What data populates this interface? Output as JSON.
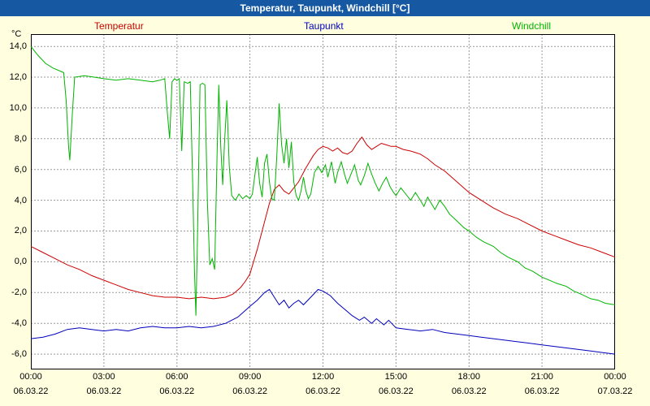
{
  "title": "Temperatur, Taupunkt, Windchill [°C]",
  "legend": {
    "temperatur": "Temperatur",
    "taupunkt": "Taupunkt",
    "windchill": "Windchill"
  },
  "colors": {
    "titlebar_bg": "#1659a2",
    "titlebar_text": "#ffffff",
    "page_bg": "#ffffe0",
    "plot_bg": "#ffffff",
    "grid": "#999999",
    "temperatur": "#cc0000",
    "taupunkt": "#0000bb",
    "windchill": "#00b400"
  },
  "chart_data": {
    "type": "line",
    "title": "Temperatur, Taupunkt, Windchill [°C]",
    "xlabel": "",
    "ylabel": "°C",
    "grid": true,
    "legend_position": "top",
    "xlim": [
      0,
      24
    ],
    "ylim": [
      -7,
      14.8
    ],
    "yticks": {
      "values": [
        14,
        12,
        10,
        8,
        6,
        4,
        2,
        0,
        -2,
        -4,
        -6
      ],
      "labels": [
        "14,0",
        "12,0",
        "10,0",
        "8,0",
        "6,0",
        "4,0",
        "2,0",
        "0,0",
        "-2,0",
        "-4,0",
        "-6,0"
      ]
    },
    "xticks": {
      "hours": [
        0,
        3,
        6,
        9,
        12,
        15,
        18,
        21,
        24
      ],
      "time_labels": [
        "00:00",
        "03:00",
        "06:00",
        "09:00",
        "12:00",
        "15:00",
        "18:00",
        "21:00",
        "00:00"
      ],
      "date_labels": [
        "06.03.22",
        "06.03.22",
        "06.03.22",
        "06.03.22",
        "06.03.22",
        "06.03.22",
        "06.03.22",
        "06.03.22",
        "07.03.22"
      ]
    },
    "series": [
      {
        "name": "Temperatur",
        "color": "#cc0000",
        "points": [
          [
            0,
            1.0
          ],
          [
            0.5,
            0.6
          ],
          [
            1,
            0.2
          ],
          [
            1.5,
            -0.2
          ],
          [
            2,
            -0.5
          ],
          [
            2.5,
            -0.9
          ],
          [
            3,
            -1.2
          ],
          [
            3.5,
            -1.5
          ],
          [
            4,
            -1.8
          ],
          [
            4.5,
            -2.0
          ],
          [
            5,
            -2.2
          ],
          [
            5.5,
            -2.3
          ],
          [
            6,
            -2.3
          ],
          [
            6.5,
            -2.4
          ],
          [
            7,
            -2.3
          ],
          [
            7.5,
            -2.4
          ],
          [
            8,
            -2.3
          ],
          [
            8.3,
            -2.1
          ],
          [
            8.6,
            -1.7
          ],
          [
            8.8,
            -1.3
          ],
          [
            9,
            -0.8
          ],
          [
            9.3,
            0.8
          ],
          [
            9.6,
            2.6
          ],
          [
            9.8,
            3.8
          ],
          [
            10,
            4.7
          ],
          [
            10.2,
            5.0
          ],
          [
            10.4,
            4.6
          ],
          [
            10.6,
            4.4
          ],
          [
            10.8,
            4.8
          ],
          [
            11,
            5.2
          ],
          [
            11.3,
            6.1
          ],
          [
            11.6,
            6.9
          ],
          [
            11.8,
            7.3
          ],
          [
            12,
            7.5
          ],
          [
            12.2,
            7.4
          ],
          [
            12.4,
            7.2
          ],
          [
            12.6,
            7.4
          ],
          [
            12.8,
            7.1
          ],
          [
            13,
            7.0
          ],
          [
            13.2,
            7.2
          ],
          [
            13.4,
            7.7
          ],
          [
            13.6,
            8.1
          ],
          [
            13.8,
            7.6
          ],
          [
            14,
            7.3
          ],
          [
            14.2,
            7.5
          ],
          [
            14.4,
            7.7
          ],
          [
            14.6,
            7.6
          ],
          [
            14.8,
            7.5
          ],
          [
            15,
            7.5
          ],
          [
            15.3,
            7.3
          ],
          [
            15.6,
            7.2
          ],
          [
            16,
            7.0
          ],
          [
            16.3,
            6.7
          ],
          [
            16.6,
            6.3
          ],
          [
            17,
            5.9
          ],
          [
            17.5,
            5.2
          ],
          [
            18,
            4.5
          ],
          [
            18.5,
            4.0
          ],
          [
            19,
            3.5
          ],
          [
            19.5,
            3.1
          ],
          [
            20,
            2.8
          ],
          [
            20.5,
            2.4
          ],
          [
            21,
            2.0
          ],
          [
            21.5,
            1.7
          ],
          [
            22,
            1.4
          ],
          [
            22.5,
            1.1
          ],
          [
            23,
            0.9
          ],
          [
            23.5,
            0.6
          ],
          [
            24,
            0.3
          ]
        ]
      },
      {
        "name": "Taupunkt",
        "color": "#0000bb",
        "points": [
          [
            0,
            -5.0
          ],
          [
            0.5,
            -4.9
          ],
          [
            1,
            -4.7
          ],
          [
            1.5,
            -4.4
          ],
          [
            2,
            -4.3
          ],
          [
            2.5,
            -4.4
          ],
          [
            3,
            -4.5
          ],
          [
            3.5,
            -4.4
          ],
          [
            4,
            -4.5
          ],
          [
            4.5,
            -4.3
          ],
          [
            5,
            -4.2
          ],
          [
            5.5,
            -4.3
          ],
          [
            6,
            -4.3
          ],
          [
            6.5,
            -4.2
          ],
          [
            7,
            -4.3
          ],
          [
            7.5,
            -4.2
          ],
          [
            8,
            -4.0
          ],
          [
            8.5,
            -3.6
          ],
          [
            9,
            -2.9
          ],
          [
            9.3,
            -2.5
          ],
          [
            9.6,
            -2.0
          ],
          [
            9.8,
            -1.8
          ],
          [
            10,
            -2.3
          ],
          [
            10.2,
            -2.8
          ],
          [
            10.4,
            -2.5
          ],
          [
            10.6,
            -3.0
          ],
          [
            10.8,
            -2.7
          ],
          [
            11,
            -2.5
          ],
          [
            11.2,
            -2.8
          ],
          [
            11.5,
            -2.3
          ],
          [
            11.8,
            -1.8
          ],
          [
            12,
            -1.9
          ],
          [
            12.3,
            -2.2
          ],
          [
            12.6,
            -2.7
          ],
          [
            12.9,
            -3.1
          ],
          [
            13.2,
            -3.5
          ],
          [
            13.5,
            -3.8
          ],
          [
            13.7,
            -3.6
          ],
          [
            14,
            -4.0
          ],
          [
            14.2,
            -3.7
          ],
          [
            14.5,
            -4.1
          ],
          [
            14.7,
            -3.8
          ],
          [
            15,
            -4.3
          ],
          [
            15.5,
            -4.4
          ],
          [
            16,
            -4.5
          ],
          [
            16.5,
            -4.4
          ],
          [
            17,
            -4.6
          ],
          [
            17.5,
            -4.7
          ],
          [
            18,
            -4.8
          ],
          [
            18.5,
            -4.9
          ],
          [
            19,
            -5.0
          ],
          [
            19.5,
            -5.1
          ],
          [
            20,
            -5.2
          ],
          [
            20.5,
            -5.3
          ],
          [
            21,
            -5.4
          ],
          [
            21.5,
            -5.5
          ],
          [
            22,
            -5.6
          ],
          [
            22.5,
            -5.7
          ],
          [
            23,
            -5.8
          ],
          [
            23.5,
            -5.9
          ],
          [
            24,
            -6.0
          ]
        ]
      },
      {
        "name": "Windchill",
        "color": "#00b400",
        "points": [
          [
            0,
            14.0
          ],
          [
            0.3,
            13.4
          ],
          [
            0.6,
            12.9
          ],
          [
            0.9,
            12.6
          ],
          [
            1.2,
            12.4
          ],
          [
            1.35,
            12.3
          ],
          [
            1.45,
            10.5
          ],
          [
            1.55,
            7.5
          ],
          [
            1.6,
            6.6
          ],
          [
            1.7,
            9.5
          ],
          [
            1.8,
            12.0
          ],
          [
            2.2,
            12.1
          ],
          [
            2.6,
            12.0
          ],
          [
            3,
            11.9
          ],
          [
            3.5,
            11.8
          ],
          [
            4,
            11.9
          ],
          [
            4.5,
            11.8
          ],
          [
            5,
            11.7
          ],
          [
            5.3,
            11.8
          ],
          [
            5.5,
            11.9
          ],
          [
            5.6,
            9.8
          ],
          [
            5.7,
            8.0
          ],
          [
            5.8,
            11.7
          ],
          [
            5.9,
            11.9
          ],
          [
            6,
            11.8
          ],
          [
            6.1,
            11.9
          ],
          [
            6.2,
            7.2
          ],
          [
            6.3,
            11.7
          ],
          [
            6.45,
            11.6
          ],
          [
            6.55,
            11.7
          ],
          [
            6.65,
            5.0
          ],
          [
            6.72,
            -0.5
          ],
          [
            6.78,
            -3.5
          ],
          [
            6.85,
            2.0
          ],
          [
            6.95,
            11.5
          ],
          [
            7.05,
            11.6
          ],
          [
            7.15,
            11.5
          ],
          [
            7.25,
            4.0
          ],
          [
            7.35,
            -0.2
          ],
          [
            7.45,
            0.2
          ],
          [
            7.55,
            -0.5
          ],
          [
            7.65,
            7.0
          ],
          [
            7.72,
            11.5
          ],
          [
            7.8,
            7.5
          ],
          [
            7.88,
            5.0
          ],
          [
            7.95,
            7.6
          ],
          [
            8.05,
            10.5
          ],
          [
            8.15,
            6.2
          ],
          [
            8.25,
            4.3
          ],
          [
            8.4,
            4.0
          ],
          [
            8.55,
            4.4
          ],
          [
            8.7,
            4.1
          ],
          [
            8.85,
            4.3
          ],
          [
            9,
            4.1
          ],
          [
            9.1,
            4.4
          ],
          [
            9.2,
            5.6
          ],
          [
            9.3,
            6.8
          ],
          [
            9.4,
            5.1
          ],
          [
            9.5,
            4.2
          ],
          [
            9.6,
            6.4
          ],
          [
            9.7,
            7.0
          ],
          [
            9.8,
            5.2
          ],
          [
            9.9,
            4.1
          ],
          [
            10,
            4.0
          ],
          [
            10.1,
            6.8
          ],
          [
            10.2,
            10.3
          ],
          [
            10.3,
            7.6
          ],
          [
            10.4,
            6.4
          ],
          [
            10.5,
            8.0
          ],
          [
            10.6,
            6.1
          ],
          [
            10.7,
            7.8
          ],
          [
            10.8,
            5.2
          ],
          [
            10.9,
            4.3
          ],
          [
            11,
            4.0
          ],
          [
            11.1,
            4.6
          ],
          [
            11.2,
            5.5
          ],
          [
            11.3,
            4.6
          ],
          [
            11.4,
            4.1
          ],
          [
            11.5,
            4.4
          ],
          [
            11.65,
            5.8
          ],
          [
            11.8,
            6.2
          ],
          [
            11.95,
            5.8
          ],
          [
            12.1,
            6.3
          ],
          [
            12.2,
            5.5
          ],
          [
            12.35,
            6.5
          ],
          [
            12.5,
            5.1
          ],
          [
            12.6,
            5.8
          ],
          [
            12.75,
            6.5
          ],
          [
            12.9,
            5.6
          ],
          [
            13,
            5.1
          ],
          [
            13.15,
            5.7
          ],
          [
            13.3,
            6.3
          ],
          [
            13.45,
            5.3
          ],
          [
            13.55,
            5.0
          ],
          [
            13.7,
            5.6
          ],
          [
            13.85,
            6.4
          ],
          [
            14,
            5.7
          ],
          [
            14.15,
            5.1
          ],
          [
            14.3,
            4.6
          ],
          [
            14.45,
            5.1
          ],
          [
            14.6,
            5.5
          ],
          [
            14.75,
            4.9
          ],
          [
            14.9,
            4.5
          ],
          [
            15,
            4.3
          ],
          [
            15.2,
            4.8
          ],
          [
            15.4,
            4.4
          ],
          [
            15.6,
            4.0
          ],
          [
            15.8,
            4.5
          ],
          [
            16,
            4.0
          ],
          [
            16.15,
            3.6
          ],
          [
            16.3,
            4.2
          ],
          [
            16.45,
            3.8
          ],
          [
            16.6,
            3.4
          ],
          [
            16.8,
            4.0
          ],
          [
            17,
            3.6
          ],
          [
            17.2,
            3.1
          ],
          [
            17.4,
            2.8
          ],
          [
            17.6,
            2.5
          ],
          [
            17.8,
            2.2
          ],
          [
            18,
            2.0
          ],
          [
            18.3,
            1.6
          ],
          [
            18.6,
            1.3
          ],
          [
            19,
            1.0
          ],
          [
            19.3,
            0.6
          ],
          [
            19.6,
            0.3
          ],
          [
            20,
            0.0
          ],
          [
            20.3,
            -0.4
          ],
          [
            20.6,
            -0.6
          ],
          [
            21,
            -1.0
          ],
          [
            21.3,
            -1.2
          ],
          [
            21.6,
            -1.4
          ],
          [
            22,
            -1.6
          ],
          [
            22.3,
            -1.9
          ],
          [
            22.6,
            -2.1
          ],
          [
            23,
            -2.4
          ],
          [
            23.3,
            -2.5
          ],
          [
            23.6,
            -2.7
          ],
          [
            24,
            -2.8
          ]
        ]
      }
    ]
  }
}
